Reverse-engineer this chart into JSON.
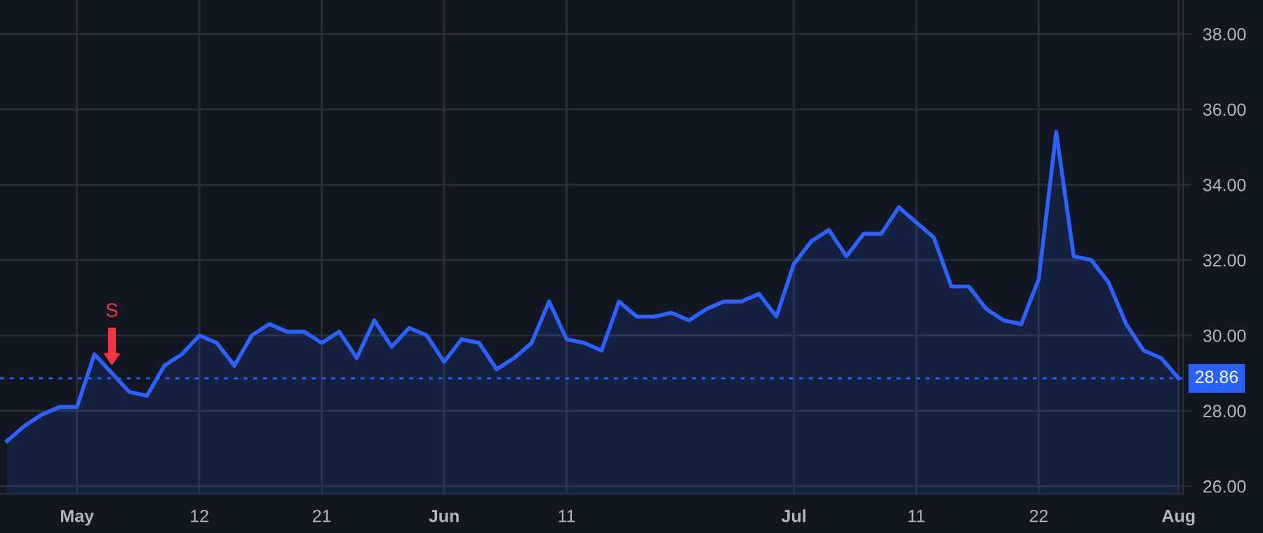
{
  "chart_data": {
    "type": "area",
    "categories": [
      null,
      null,
      null,
      null,
      "May",
      null,
      null,
      null,
      null,
      null,
      null,
      "12",
      null,
      null,
      null,
      null,
      null,
      null,
      "21",
      null,
      null,
      null,
      null,
      null,
      null,
      "Jun",
      null,
      null,
      null,
      null,
      null,
      null,
      "11",
      null,
      null,
      null,
      null,
      null,
      null,
      null,
      null,
      null,
      null,
      null,
      null,
      "Jul",
      null,
      null,
      null,
      null,
      null,
      null,
      "11",
      null,
      null,
      null,
      null,
      null,
      null,
      "22",
      null,
      null,
      null,
      null,
      null,
      null,
      null,
      "Aug"
    ],
    "series": [
      {
        "color": "#2962ff",
        "values": [
          27.2,
          27.6,
          27.9,
          28.1,
          28.1,
          29.5,
          29.0,
          28.5,
          28.4,
          29.2,
          29.5,
          30.0,
          29.8,
          29.2,
          30.0,
          30.3,
          30.1,
          30.1,
          29.8,
          30.1,
          29.4,
          30.4,
          29.7,
          30.2,
          30.0,
          29.3,
          29.9,
          29.8,
          29.1,
          29.4,
          29.8,
          30.9,
          29.9,
          29.8,
          29.6,
          30.9,
          30.5,
          30.5,
          30.6,
          30.4,
          30.7,
          30.9,
          30.9,
          31.1,
          30.5,
          31.9,
          32.5,
          32.8,
          32.1,
          32.7,
          32.7,
          33.4,
          33.0,
          32.6,
          31.3,
          31.3,
          30.7,
          30.4,
          30.3,
          31.5,
          35.4,
          32.1,
          32.0,
          31.4,
          30.3,
          29.6,
          29.4,
          28.86
        ]
      }
    ],
    "ylim": [
      25.8,
      38.9
    ],
    "yticks": [
      {
        "value": 26,
        "label": "26.00"
      },
      {
        "value": 28,
        "label": "28.00"
      },
      {
        "value": 30,
        "label": "30.00"
      },
      {
        "value": 32,
        "label": "32.00"
      },
      {
        "value": 34,
        "label": "34.00"
      },
      {
        "value": 36,
        "label": "36.00"
      },
      {
        "value": 38,
        "label": "38.00"
      }
    ],
    "ref_lines": [
      {
        "axis": "y",
        "value": 28.86,
        "label": "28.86",
        "color": "#2962ff",
        "line_style": "dotted"
      }
    ],
    "annotations": [
      "S"
    ],
    "grid": true,
    "legend": false
  }
}
